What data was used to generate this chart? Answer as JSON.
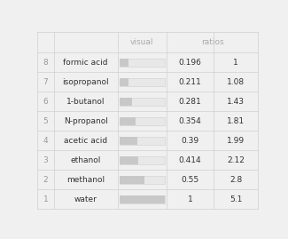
{
  "rows": [
    {
      "rank": "8",
      "name": "formic acid",
      "value": 0.196,
      "ratio": "1"
    },
    {
      "rank": "7",
      "name": "isopropanol",
      "value": 0.211,
      "ratio": "1.08"
    },
    {
      "rank": "6",
      "name": "1-butanol",
      "value": 0.281,
      "ratio": "1.43"
    },
    {
      "rank": "5",
      "name": "N-propanol",
      "value": 0.354,
      "ratio": "1.81"
    },
    {
      "rank": "4",
      "name": "acetic acid",
      "value": 0.39,
      "ratio": "1.99"
    },
    {
      "rank": "3",
      "name": "ethanol",
      "value": 0.414,
      "ratio": "2.12"
    },
    {
      "rank": "2",
      "name": "methanol",
      "value": 0.55,
      "ratio": "2.8"
    },
    {
      "rank": "1",
      "name": "water",
      "value": 1.0,
      "ratio": "5.1"
    }
  ],
  "value_labels": [
    "0.196",
    "0.211",
    "0.281",
    "0.354",
    "0.39",
    "0.414",
    "0.55",
    "1"
  ],
  "bg_color": "#f0f0f0",
  "text_color": "#999999",
  "name_color": "#333333",
  "bar_bg_color": "#e8e8e8",
  "bar_fill_color": "#c8c8c8",
  "line_color": "#d0d0d0",
  "header_color": "#aaaaaa",
  "max_bar_value": 1.0,
  "font_size": 6.5,
  "header_font_size": 6.5
}
